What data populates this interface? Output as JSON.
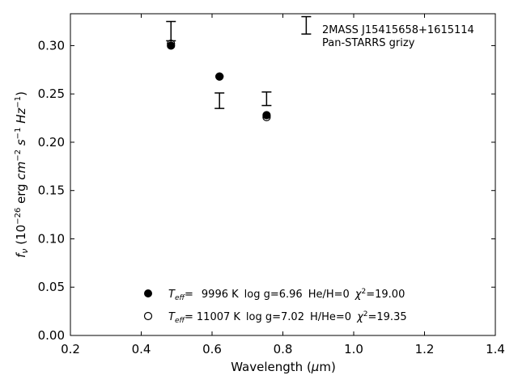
{
  "chart_data": {
    "type": "scatter",
    "xlabel": "Wavelength (μm)",
    "ylabel": "f_ν (10^-26 erg cm^-2 s^-1 Hz^-1)",
    "xlim": [
      0.2,
      1.4
    ],
    "ylim": [
      0.0,
      0.333
    ],
    "xticks": [
      "0.2",
      "0.4",
      "0.6",
      "0.8",
      "1.0",
      "1.2",
      "1.4"
    ],
    "yticks": [
      "0.00",
      "0.05",
      "0.10",
      "0.15",
      "0.20",
      "0.25",
      "0.30"
    ],
    "grid": false,
    "annotation": {
      "line1": "2MASS J15415658+1615114",
      "line2": "Pan-STARRS grizy"
    },
    "observed": [
      {
        "x": 0.484,
        "y": 0.315,
        "yerr": 0.01
      },
      {
        "x": 0.621,
        "y": 0.243,
        "yerr": 0.008
      },
      {
        "x": 0.754,
        "y": 0.245,
        "yerr": 0.007
      },
      {
        "x": 0.866,
        "y": 0.321,
        "yerr": 0.009
      }
    ],
    "series": [
      {
        "name": "Teff= 9996 K log g=6.96 He/H=0 χ2=19.00",
        "marker": "filled-circle",
        "x": [
          0.484,
          0.621,
          0.754
        ],
        "y": [
          0.3,
          0.268,
          0.228
        ]
      },
      {
        "name": "Teff= 11007 K log g=7.02 H/He=0 χ2=19.35",
        "marker": "open-circle",
        "x": [
          0.484,
          0.621,
          0.754
        ],
        "y": [
          0.302,
          0.268,
          0.226
        ]
      }
    ],
    "legend": {
      "position": "bottom-center",
      "entries": [
        {
          "teff_prefix": "T",
          "teff_sub": "eff",
          "eq": "=",
          "teff": "9996 K",
          "logg": "log g=6.96",
          "comp": "He/H=0",
          "chi_sym": "χ",
          "chi_sup": "2",
          "chi": "=19.00"
        },
        {
          "teff_prefix": "T",
          "teff_sub": "eff",
          "eq": "=",
          "teff": "11007 K",
          "logg": "log g=7.02",
          "comp": "H/He=0",
          "chi_sym": "χ",
          "chi_sup": "2",
          "chi": "=19.35"
        }
      ]
    },
    "colors": {
      "marker": "#000000",
      "axis": "#000000",
      "background": "#ffffff"
    }
  }
}
